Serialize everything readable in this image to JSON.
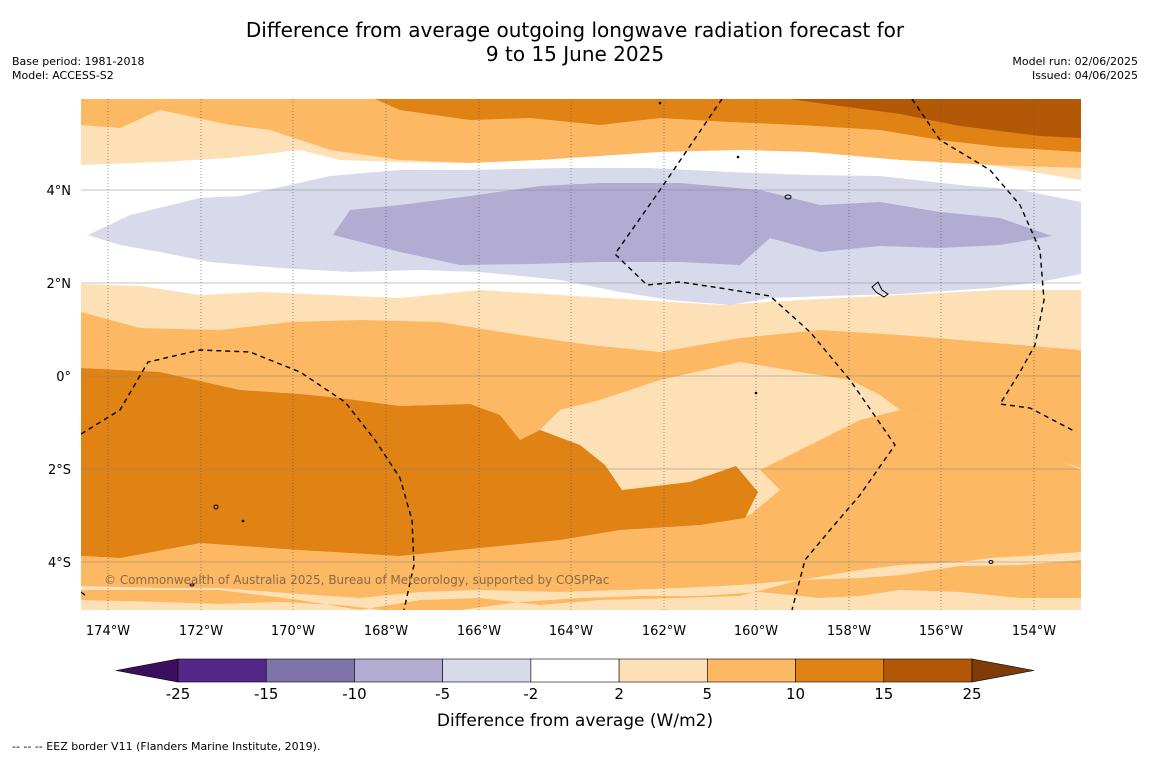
{
  "title_line1": "Difference from average outgoing longwave radiation forecast for",
  "title_line2": "9 to 15 June 2025",
  "base_period": "Base period: 1981-2018",
  "model": "Model: ACCESS-S2",
  "model_run": "Model run: 02/06/2025",
  "issued": "Issued: 04/06/2025",
  "copyright": "© Commonwealth of Australia 2025, Bureau of Meteorology, supported by COSPPac",
  "footer_legend": "--  --  -- EEZ border V11 (Flanders Marine Institute, 2019).",
  "colorbar": {
    "label": "Difference from average (W/m2)",
    "ticks": [
      "-25",
      "-15",
      "-10",
      "-5",
      "-2",
      "2",
      "5",
      "10",
      "15",
      "25"
    ],
    "colors": [
      "#3b0f5e",
      "#542788",
      "#8073ac",
      "#b2abd2",
      "#d8daeb",
      "#ffffff",
      "#fee0b6",
      "#fdb863",
      "#e08214",
      "#b35806",
      "#7f3b08"
    ]
  },
  "map": {
    "x_ticks": [
      "174°W",
      "172°W",
      "170°W",
      "168°W",
      "166°W",
      "164°W",
      "162°W",
      "160°W",
      "158°W",
      "156°W",
      "154°W"
    ],
    "y_ticks": [
      "4°N",
      "2°N",
      "0°",
      "2°S",
      "4°S"
    ]
  }
}
